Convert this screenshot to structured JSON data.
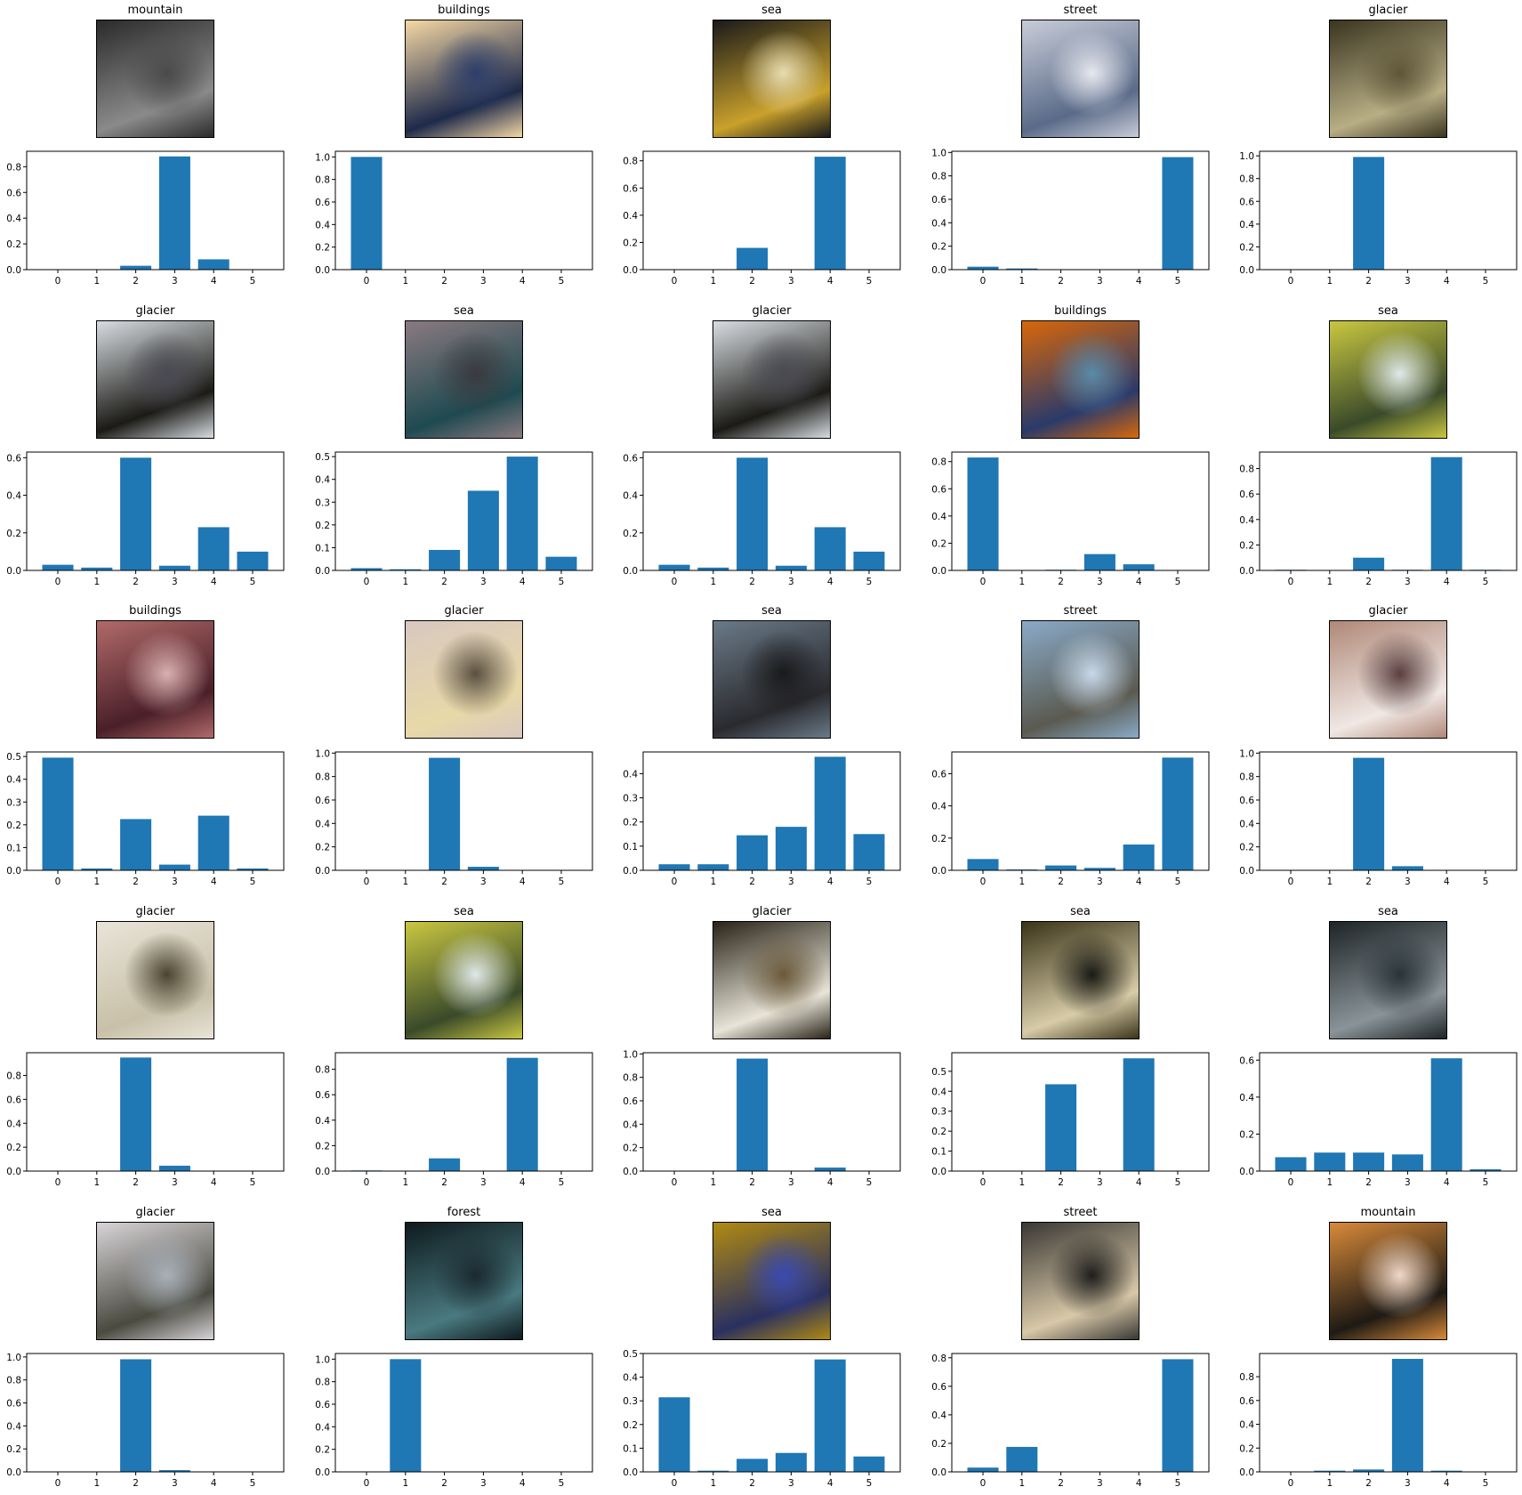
{
  "figure": {
    "bar_color": "#1f77b4",
    "axis_color": "#000000",
    "background": "#ffffff"
  },
  "panels": [
    {
      "title": "mountain",
      "thumb_colors": [
        "#2b2b2b",
        "#8a8a8a",
        "#4a4a4a"
      ]
    },
    {
      "title": "buildings",
      "thumb_colors": [
        "#f5d8a5",
        "#1e2a4a",
        "#2f3f6a"
      ]
    },
    {
      "title": "sea",
      "thumb_colors": [
        "#1a1a1a",
        "#c9a12b",
        "#e8dcb0"
      ]
    },
    {
      "title": "street",
      "thumb_colors": [
        "#c8ccd8",
        "#5a6a88",
        "#e6e8ee"
      ]
    },
    {
      "title": "glacier",
      "thumb_colors": [
        "#3a3520",
        "#b8ae85",
        "#5e5638"
      ]
    },
    {
      "title": "glacier",
      "thumb_colors": [
        "#d8dde2",
        "#1b1a16",
        "#4a4a52"
      ]
    },
    {
      "title": "sea",
      "thumb_colors": [
        "#8a7a80",
        "#1e4a50",
        "#3a3a40"
      ]
    },
    {
      "title": "glacier",
      "thumb_colors": [
        "#d8dde2",
        "#1b1a16",
        "#4a4a52"
      ]
    },
    {
      "title": "buildings",
      "thumb_colors": [
        "#d9670a",
        "#2a3a6a",
        "#5a8aa8"
      ]
    },
    {
      "title": "sea",
      "thumb_colors": [
        "#c9c740",
        "#3a4a2a",
        "#dfe8e8"
      ]
    },
    {
      "title": "buildings",
      "thumb_colors": [
        "#b06a6a",
        "#4a1f28",
        "#d9b0b0"
      ]
    },
    {
      "title": "glacier",
      "thumb_colors": [
        "#d8c8c0",
        "#e8d8a8",
        "#5a5040"
      ]
    },
    {
      "title": "sea",
      "thumb_colors": [
        "#6a7a88",
        "#2a2a2e",
        "#1a1a1c"
      ]
    },
    {
      "title": "street",
      "thumb_colors": [
        "#8aaac8",
        "#5a5a50",
        "#c8d8e8"
      ]
    },
    {
      "title": "glacier",
      "thumb_colors": [
        "#b08878",
        "#f0e8e4",
        "#5a4040"
      ]
    },
    {
      "title": "glacier",
      "thumb_colors": [
        "#e8e4d8",
        "#c8c0a8",
        "#4a4430"
      ]
    },
    {
      "title": "sea",
      "thumb_colors": [
        "#c9c740",
        "#3a4a2a",
        "#dfe8e8"
      ]
    },
    {
      "title": "glacier",
      "thumb_colors": [
        "#2a2418",
        "#e8e4d8",
        "#6a5a3a"
      ]
    },
    {
      "title": "sea",
      "thumb_colors": [
        "#3a3418",
        "#d8cca8",
        "#1a1a14"
      ]
    },
    {
      "title": "sea",
      "thumb_colors": [
        "#1e2428",
        "#8a9498",
        "#2a3438"
      ]
    },
    {
      "title": "glacier",
      "thumb_colors": [
        "#d8d4d8",
        "#4a4a40",
        "#a8b0b8"
      ]
    },
    {
      "title": "forest",
      "thumb_colors": [
        "#0e1a1e",
        "#4a7a80",
        "#1a2a30"
      ]
    },
    {
      "title": "sea",
      "thumb_colors": [
        "#b08a10",
        "#2a3060",
        "#3a4ab0"
      ]
    },
    {
      "title": "street",
      "thumb_colors": [
        "#3a3834",
        "#d8c8a8",
        "#1e1e1c"
      ]
    },
    {
      "title": "mountain",
      "thumb_colors": [
        "#d88a3a",
        "#1e1a14",
        "#f0d8c8"
      ]
    }
  ],
  "chart_data": [
    {
      "type": "bar",
      "categories": [
        "0",
        "1",
        "2",
        "3",
        "4",
        "5"
      ],
      "values": [
        0,
        0,
        0.03,
        0.88,
        0.08,
        0
      ],
      "ylim": [
        0,
        0.92
      ],
      "yticks": [
        0.0,
        0.2,
        0.4,
        0.6,
        0.8
      ]
    },
    {
      "type": "bar",
      "categories": [
        "0",
        "1",
        "2",
        "3",
        "4",
        "5"
      ],
      "values": [
        1.0,
        0,
        0,
        0,
        0,
        0
      ],
      "ylim": [
        0,
        1.05
      ],
      "yticks": [
        0.0,
        0.2,
        0.4,
        0.6,
        0.8,
        1.0
      ]
    },
    {
      "type": "bar",
      "categories": [
        "0",
        "1",
        "2",
        "3",
        "4",
        "5"
      ],
      "values": [
        0,
        0,
        0.16,
        0,
        0.83,
        0
      ],
      "ylim": [
        0,
        0.87
      ],
      "yticks": [
        0.0,
        0.2,
        0.4,
        0.6,
        0.8
      ]
    },
    {
      "type": "bar",
      "categories": [
        "0",
        "1",
        "2",
        "3",
        "4",
        "5"
      ],
      "values": [
        0.025,
        0.01,
        0,
        0,
        0,
        0.96
      ],
      "ylim": [
        0,
        1.01
      ],
      "yticks": [
        0.0,
        0.2,
        0.4,
        0.6,
        0.8,
        1.0
      ]
    },
    {
      "type": "bar",
      "categories": [
        "0",
        "1",
        "2",
        "3",
        "4",
        "5"
      ],
      "values": [
        0,
        0,
        0.99,
        0,
        0,
        0
      ],
      "ylim": [
        0,
        1.04
      ],
      "yticks": [
        0.0,
        0.2,
        0.4,
        0.6,
        0.8,
        1.0
      ]
    },
    {
      "type": "bar",
      "categories": [
        "0",
        "1",
        "2",
        "3",
        "4",
        "5"
      ],
      "values": [
        0.03,
        0.015,
        0.6,
        0.025,
        0.23,
        0.1
      ],
      "ylim": [
        0,
        0.63
      ],
      "yticks": [
        0.0,
        0.2,
        0.4,
        0.6
      ]
    },
    {
      "type": "bar",
      "categories": [
        "0",
        "1",
        "2",
        "3",
        "4",
        "5"
      ],
      "values": [
        0.01,
        0.005,
        0.09,
        0.35,
        0.5,
        0.06
      ],
      "ylim": [
        0,
        0.52
      ],
      "yticks": [
        0.0,
        0.1,
        0.2,
        0.3,
        0.4,
        0.5
      ]
    },
    {
      "type": "bar",
      "categories": [
        "0",
        "1",
        "2",
        "3",
        "4",
        "5"
      ],
      "values": [
        0.03,
        0.015,
        0.6,
        0.025,
        0.23,
        0.1
      ],
      "ylim": [
        0,
        0.63
      ],
      "yticks": [
        0.0,
        0.2,
        0.4,
        0.6
      ]
    },
    {
      "type": "bar",
      "categories": [
        "0",
        "1",
        "2",
        "3",
        "4",
        "5"
      ],
      "values": [
        0.83,
        0,
        0.005,
        0.12,
        0.045,
        0
      ],
      "ylim": [
        0,
        0.87
      ],
      "yticks": [
        0.0,
        0.2,
        0.4,
        0.6,
        0.8
      ]
    },
    {
      "type": "bar",
      "categories": [
        "0",
        "1",
        "2",
        "3",
        "4",
        "5"
      ],
      "values": [
        0.005,
        0,
        0.1,
        0.005,
        0.89,
        0.005
      ],
      "ylim": [
        0,
        0.93
      ],
      "yticks": [
        0.0,
        0.2,
        0.4,
        0.6,
        0.8
      ]
    },
    {
      "type": "bar",
      "categories": [
        "0",
        "1",
        "2",
        "3",
        "4",
        "5"
      ],
      "values": [
        0.495,
        0.008,
        0.225,
        0.025,
        0.24,
        0.008
      ],
      "ylim": [
        0,
        0.52
      ],
      "yticks": [
        0.0,
        0.1,
        0.2,
        0.3,
        0.4,
        0.5
      ]
    },
    {
      "type": "bar",
      "categories": [
        "0",
        "1",
        "2",
        "3",
        "4",
        "5"
      ],
      "values": [
        0,
        0,
        0.96,
        0.03,
        0,
        0
      ],
      "ylim": [
        0,
        1.01
      ],
      "yticks": [
        0.0,
        0.2,
        0.4,
        0.6,
        0.8,
        1.0
      ]
    },
    {
      "type": "bar",
      "categories": [
        "0",
        "1",
        "2",
        "3",
        "4",
        "5"
      ],
      "values": [
        0.025,
        0.025,
        0.145,
        0.18,
        0.47,
        0.15
      ],
      "ylim": [
        0,
        0.49
      ],
      "yticks": [
        0.0,
        0.1,
        0.2,
        0.3,
        0.4
      ]
    },
    {
      "type": "bar",
      "categories": [
        "0",
        "1",
        "2",
        "3",
        "4",
        "5"
      ],
      "values": [
        0.07,
        0.005,
        0.03,
        0.015,
        0.16,
        0.7
      ],
      "ylim": [
        0,
        0.735
      ],
      "yticks": [
        0.0,
        0.2,
        0.4,
        0.6
      ]
    },
    {
      "type": "bar",
      "categories": [
        "0",
        "1",
        "2",
        "3",
        "4",
        "5"
      ],
      "values": [
        0,
        0,
        0.96,
        0.035,
        0,
        0
      ],
      "ylim": [
        0,
        1.01
      ],
      "yticks": [
        0.0,
        0.2,
        0.4,
        0.6,
        0.8,
        1.0
      ]
    },
    {
      "type": "bar",
      "categories": [
        "0",
        "1",
        "2",
        "3",
        "4",
        "5"
      ],
      "values": [
        0,
        0,
        0.95,
        0.045,
        0,
        0
      ],
      "ylim": [
        0,
        0.99
      ],
      "yticks": [
        0.0,
        0.2,
        0.4,
        0.6,
        0.8
      ]
    },
    {
      "type": "bar",
      "categories": [
        "0",
        "1",
        "2",
        "3",
        "4",
        "5"
      ],
      "values": [
        0.005,
        0,
        0.1,
        0,
        0.89,
        0
      ],
      "ylim": [
        0,
        0.93
      ],
      "yticks": [
        0.0,
        0.2,
        0.4,
        0.6,
        0.8
      ]
    },
    {
      "type": "bar",
      "categories": [
        "0",
        "1",
        "2",
        "3",
        "4",
        "5"
      ],
      "values": [
        0,
        0,
        0.96,
        0,
        0.03,
        0
      ],
      "ylim": [
        0,
        1.01
      ],
      "yticks": [
        0.0,
        0.2,
        0.4,
        0.6,
        0.8,
        1.0
      ]
    },
    {
      "type": "bar",
      "categories": [
        "0",
        "1",
        "2",
        "3",
        "4",
        "5"
      ],
      "values": [
        0,
        0,
        0.435,
        0,
        0.565,
        0
      ],
      "ylim": [
        0,
        0.593
      ],
      "yticks": [
        0.0,
        0.1,
        0.2,
        0.3,
        0.4,
        0.5
      ]
    },
    {
      "type": "bar",
      "categories": [
        "0",
        "1",
        "2",
        "3",
        "4",
        "5"
      ],
      "values": [
        0.075,
        0.1,
        0.1,
        0.09,
        0.61,
        0.01
      ],
      "ylim": [
        0,
        0.64
      ],
      "yticks": [
        0.0,
        0.2,
        0.4,
        0.6
      ]
    },
    {
      "type": "bar",
      "categories": [
        "0",
        "1",
        "2",
        "3",
        "4",
        "5"
      ],
      "values": [
        0,
        0,
        0.98,
        0.015,
        0,
        0
      ],
      "ylim": [
        0,
        1.03
      ],
      "yticks": [
        0.0,
        0.2,
        0.4,
        0.6,
        0.8,
        1.0
      ]
    },
    {
      "type": "bar",
      "categories": [
        "0",
        "1",
        "2",
        "3",
        "4",
        "5"
      ],
      "values": [
        0,
        1.0,
        0,
        0,
        0,
        0
      ],
      "ylim": [
        0,
        1.05
      ],
      "yticks": [
        0.0,
        0.2,
        0.4,
        0.6,
        0.8,
        1.0
      ]
    },
    {
      "type": "bar",
      "categories": [
        "0",
        "1",
        "2",
        "3",
        "4",
        "5"
      ],
      "values": [
        0.315,
        0.005,
        0.055,
        0.08,
        0.475,
        0.065
      ],
      "ylim": [
        0,
        0.5
      ],
      "yticks": [
        0.0,
        0.1,
        0.2,
        0.3,
        0.4,
        0.5
      ]
    },
    {
      "type": "bar",
      "categories": [
        "0",
        "1",
        "2",
        "3",
        "4",
        "5"
      ],
      "values": [
        0.03,
        0.175,
        0,
        0,
        0,
        0.79
      ],
      "ylim": [
        0,
        0.83
      ],
      "yticks": [
        0.0,
        0.2,
        0.4,
        0.6,
        0.8
      ]
    },
    {
      "type": "bar",
      "categories": [
        "0",
        "1",
        "2",
        "3",
        "4",
        "5"
      ],
      "values": [
        0,
        0.01,
        0.02,
        0.95,
        0.01,
        0
      ],
      "ylim": [
        0,
        0.995
      ],
      "yticks": [
        0.0,
        0.2,
        0.4,
        0.6,
        0.8
      ]
    }
  ]
}
